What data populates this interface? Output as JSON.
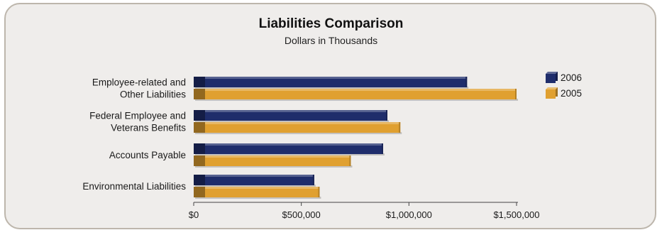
{
  "chart_data": {
    "type": "bar",
    "orientation": "horizontal",
    "title": "Liabilities Comparison",
    "subtitle": "Dollars in Thousands",
    "categories": [
      [
        "Employee-related and",
        "Other Liabilities"
      ],
      [
        "Federal Employee and",
        "Veterans Benefits"
      ],
      [
        "Accounts Payable"
      ],
      [
        "Environmental Liabilities"
      ]
    ],
    "series": [
      {
        "name": "2006",
        "color": "#1f2d6b",
        "values": [
          1270000,
          900000,
          880000,
          560000
        ]
      },
      {
        "name": "2005",
        "color": "#e0a030",
        "values": [
          1500000,
          960000,
          730000,
          585000
        ]
      }
    ],
    "xlim": [
      0,
      1500000
    ],
    "xticks": [
      0,
      500000,
      1000000,
      1500000
    ],
    "xtick_labels": [
      "$0",
      "$500,000",
      "$1,000,000",
      "$1,500,000"
    ],
    "legend_position": "top-right",
    "grid": false
  }
}
